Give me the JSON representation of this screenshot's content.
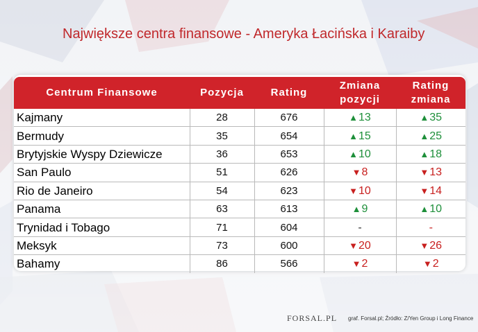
{
  "title": "Największe centra finansowe - Ameryka Łacińska i Karaiby",
  "colors": {
    "header": "#d0232a",
    "up": "#1e8f3a",
    "down": "#c8201f",
    "title": "#c0282b"
  },
  "chart_data": {
    "type": "table",
    "columns": [
      "Centrum Finansowe",
      "Pozycja",
      "Rating",
      "Zmiana pozycji",
      "Rating zmiana"
    ],
    "rows": [
      {
        "name": "Kajmany",
        "position": "28",
        "rating": "676",
        "pos_change": {
          "dir": "up",
          "value": "13"
        },
        "rating_change": {
          "dir": "up",
          "value": "35"
        }
      },
      {
        "name": "Bermudy",
        "position": "35",
        "rating": "654",
        "pos_change": {
          "dir": "up",
          "value": "15"
        },
        "rating_change": {
          "dir": "up",
          "value": "25"
        }
      },
      {
        "name": "Brytyjskie Wyspy Dziewicze",
        "position": "36",
        "rating": "653",
        "pos_change": {
          "dir": "up",
          "value": "10"
        },
        "rating_change": {
          "dir": "up",
          "value": "18"
        }
      },
      {
        "name": "San Paulo",
        "position": "51",
        "rating": "626",
        "pos_change": {
          "dir": "down",
          "value": "8"
        },
        "rating_change": {
          "dir": "down",
          "value": "13"
        }
      },
      {
        "name": "Rio de Janeiro",
        "position": "54",
        "rating": "623",
        "pos_change": {
          "dir": "down",
          "value": "10"
        },
        "rating_change": {
          "dir": "down",
          "value": "14"
        }
      },
      {
        "name": "Panama",
        "position": "63",
        "rating": "613",
        "pos_change": {
          "dir": "up",
          "value": "9"
        },
        "rating_change": {
          "dir": "up",
          "value": "10"
        }
      },
      {
        "name": "Trynidad i Tobago",
        "position": "71",
        "rating": "604",
        "pos_change": {
          "dir": "none",
          "value": "-"
        },
        "rating_change": {
          "dir": "none",
          "value": "-"
        }
      },
      {
        "name": "Meksyk",
        "position": "73",
        "rating": "600",
        "pos_change": {
          "dir": "down",
          "value": "20"
        },
        "rating_change": {
          "dir": "down",
          "value": "26"
        }
      },
      {
        "name": "Bahamy",
        "position": "86",
        "rating": "566",
        "pos_change": {
          "dir": "down",
          "value": "2"
        },
        "rating_change": {
          "dir": "down",
          "value": "2"
        }
      }
    ]
  },
  "footer": {
    "logo": "FORSAL.PL",
    "source": "graf. Forsal.pl; Źródło: Z/Yen Group i Long Finance"
  }
}
